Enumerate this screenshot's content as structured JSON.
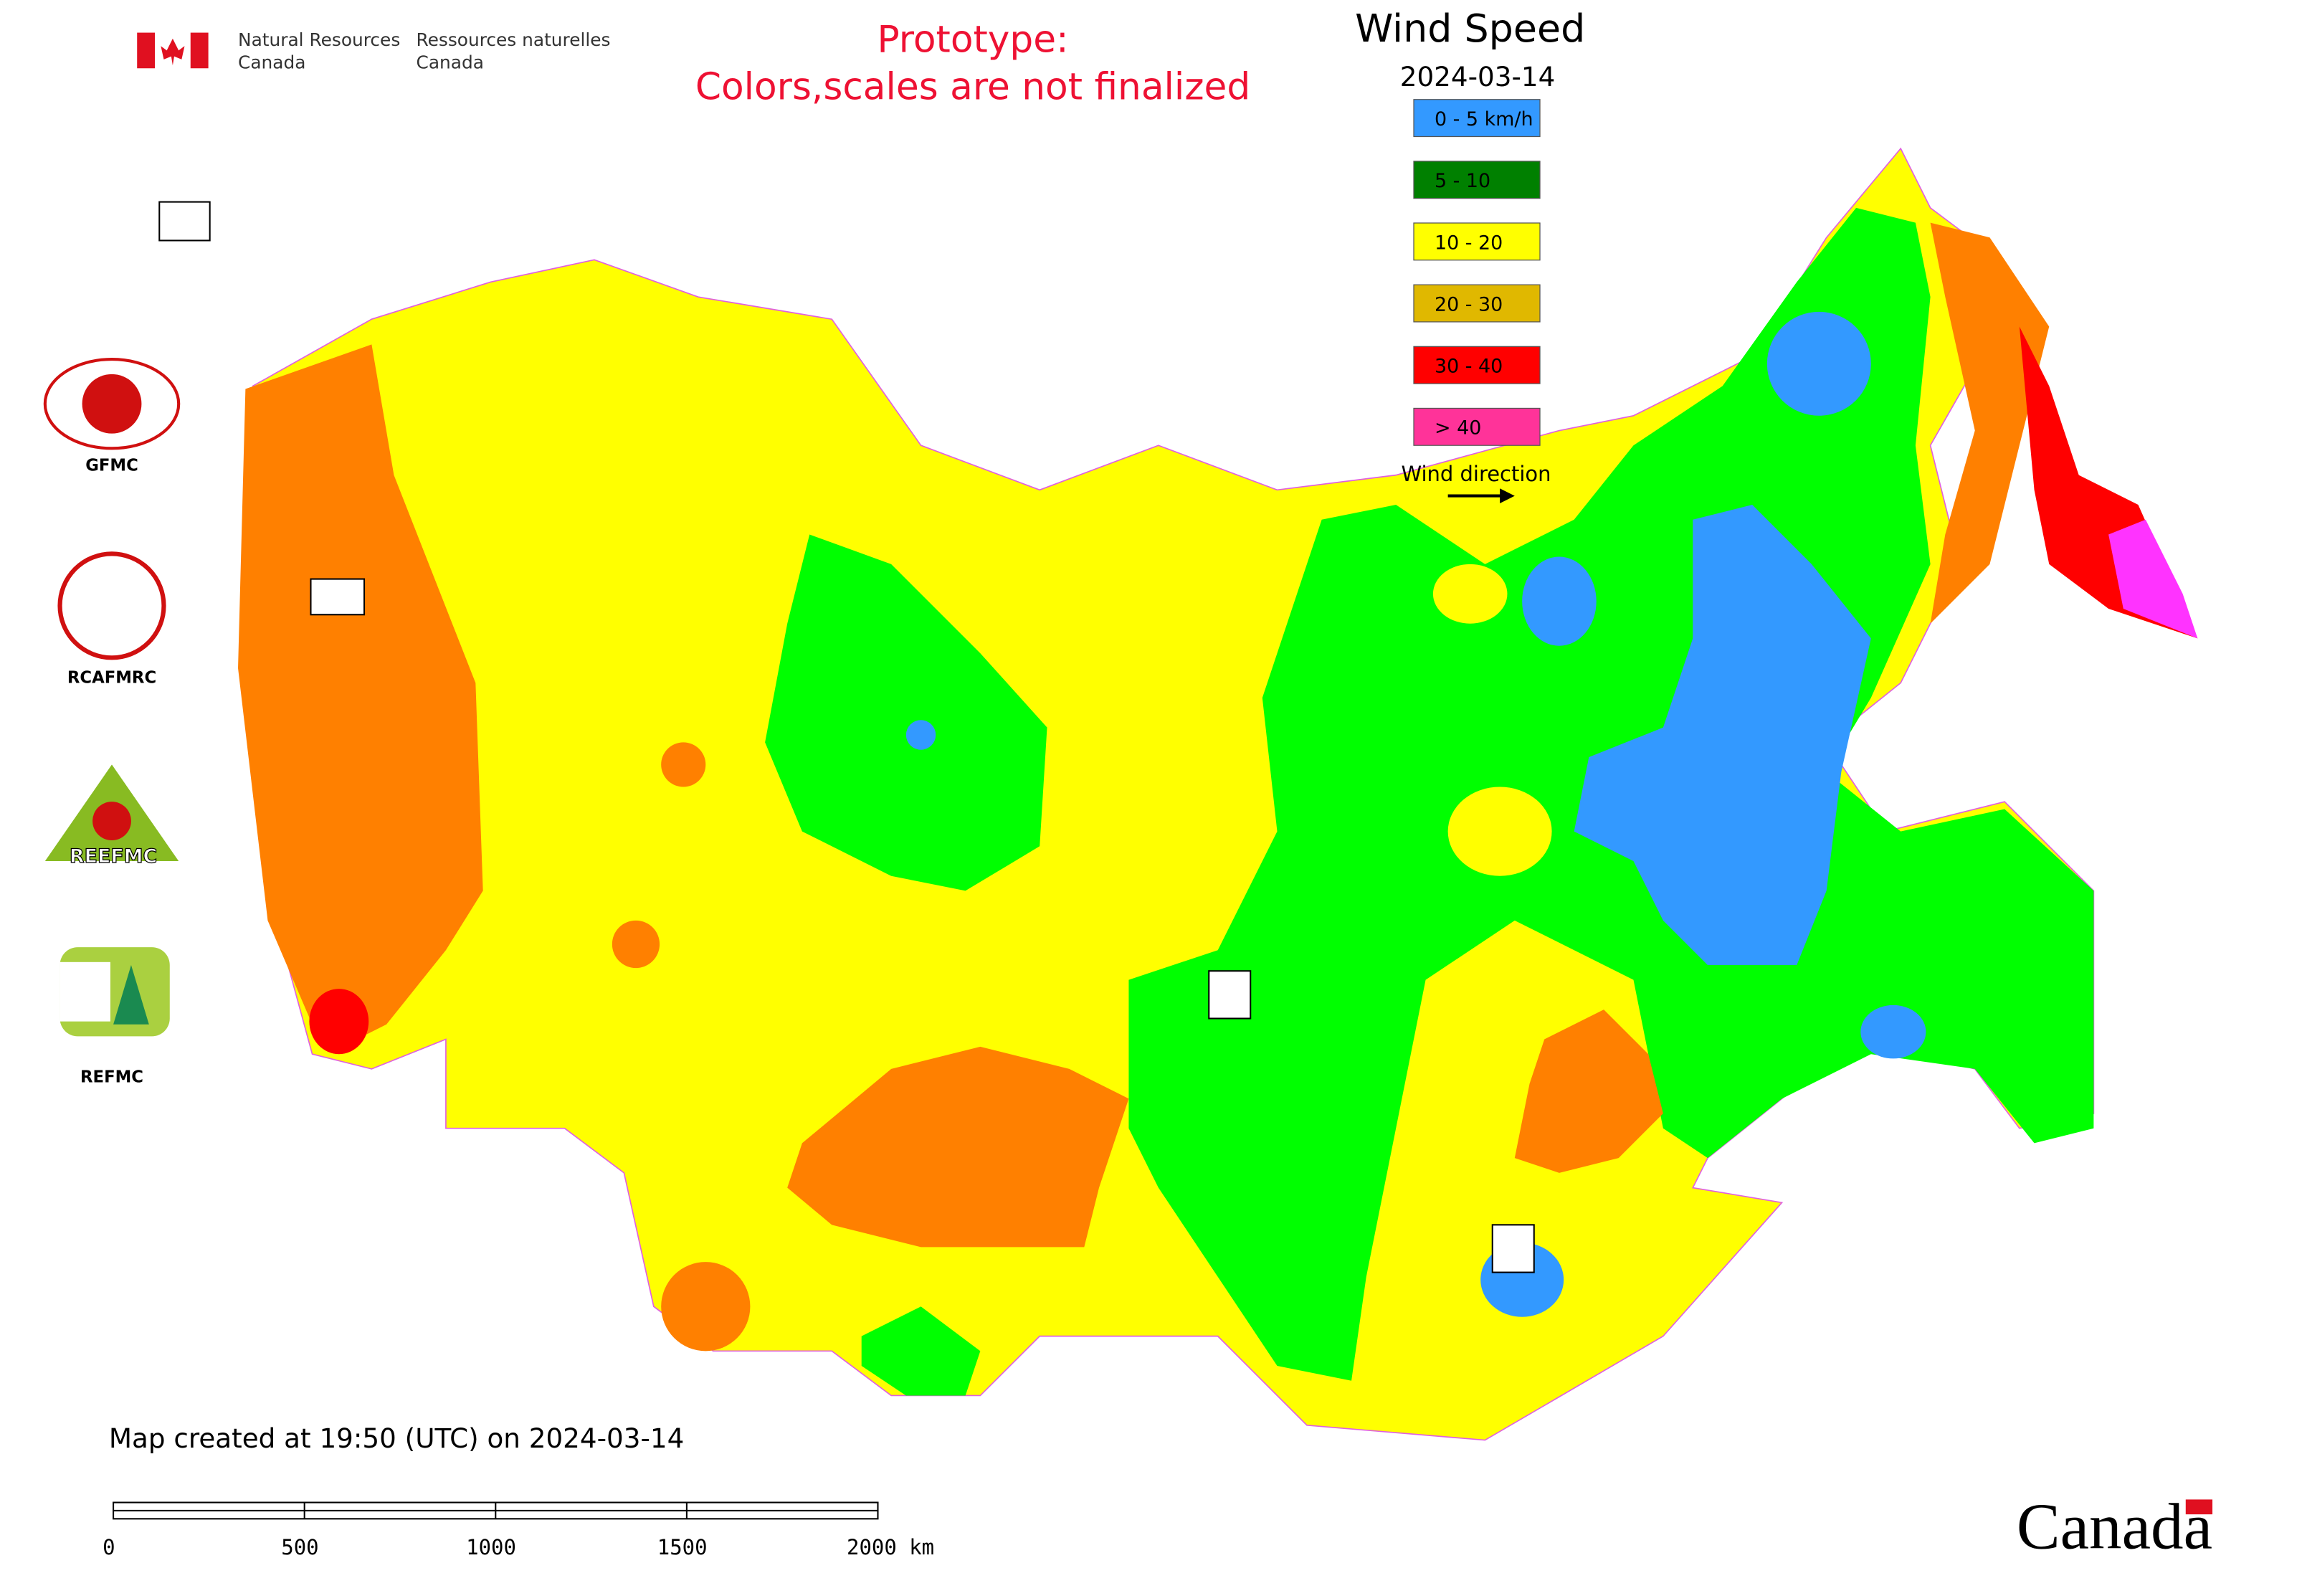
{
  "header": {
    "agency_en": [
      "Natural Resources",
      "Canada"
    ],
    "agency_fr": [
      "Ressources naturelles",
      "Canada"
    ]
  },
  "notice": [
    "Prototype:",
    "Colors,scales are not finalized"
  ],
  "legend": {
    "title": "Wind Speed",
    "date": "2024-03-14",
    "items": [
      {
        "label": "0 - 5 km/h",
        "color": "#3399ff"
      },
      {
        "label": "5 - 10",
        "color": "#008000"
      },
      {
        "label": "10 - 20",
        "color": "#ffff00"
      },
      {
        "label": "20 - 30",
        "color": "#e0b800"
      },
      {
        "label": "30 - 40",
        "color": "#ff0000"
      },
      {
        "label": "> 40",
        "color": "#ff3399"
      }
    ],
    "direction": "Wind direction"
  },
  "logos": [
    "GFMC",
    "RCAFMRC",
    "REEFMC",
    "REFMC"
  ],
  "footer": {
    "created": "Map created at 19:50 (UTC) on 2024-03-14",
    "scale": [
      "0",
      "500",
      "1000",
      "1500",
      "2000 km"
    ],
    "wordmark": "Canada"
  }
}
